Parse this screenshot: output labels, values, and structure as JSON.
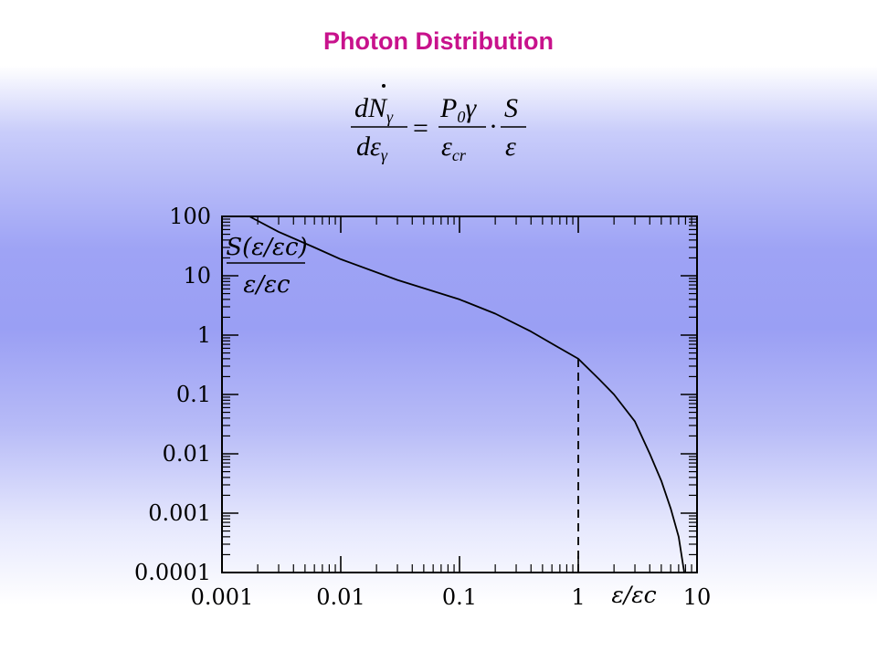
{
  "slide": {
    "title": "Photon Distribution"
  },
  "formula": {
    "lhs_numerator_main": "dN",
    "lhs_numerator_sub": "γ",
    "lhs_denominator_main": "dε",
    "lhs_denominator_sub": "γ",
    "equals": "=",
    "rhs1_numerator_main": "P",
    "rhs1_numerator_sub": "0",
    "rhs1_numerator_tail": "γ",
    "rhs1_denominator_main": "ε",
    "rhs1_denominator_sub": "cr",
    "dot": "·",
    "rhs2_numerator": "S",
    "rhs2_denominator": "ε"
  },
  "chart_data": {
    "type": "line",
    "x_scale": "log",
    "y_scale": "log",
    "xlim": [
      0.001,
      10
    ],
    "ylim": [
      0.0001,
      100
    ],
    "x_ticks": [
      0.001,
      0.01,
      0.1,
      1,
      10
    ],
    "x_tick_labels": [
      "0.001",
      "0.01",
      "0.1",
      "1",
      "10"
    ],
    "y_ticks": [
      100,
      10,
      1,
      0.1,
      0.01,
      0.001,
      0.0001
    ],
    "y_tick_labels": [
      "100",
      "10",
      "1",
      "0.1",
      "0.01",
      "0.001",
      "0.0001"
    ],
    "grid": false,
    "xlabel": "ε/εc",
    "ylabel_numerator": "S(ε/εc)",
    "ylabel_denominator": "ε/εc",
    "series": [
      {
        "x": [
          0.0017,
          0.003,
          0.006,
          0.01,
          0.03,
          0.06,
          0.1,
          0.2,
          0.4,
          0.7,
          1.0,
          1.5,
          2.0,
          3.0,
          4.0,
          5.0,
          6.0,
          7.0,
          7.8
        ],
        "y": [
          100,
          55,
          30,
          19,
          8.5,
          5.5,
          4.0,
          2.3,
          1.15,
          0.6,
          0.4,
          0.18,
          0.1,
          0.035,
          0.01,
          0.0035,
          0.0012,
          0.0004,
          0.0001
        ]
      }
    ],
    "annotations": [
      {
        "type": "vline",
        "x": 1,
        "from_y": 0.0001,
        "to_y": 0.4,
        "style": "dashed"
      }
    ]
  }
}
